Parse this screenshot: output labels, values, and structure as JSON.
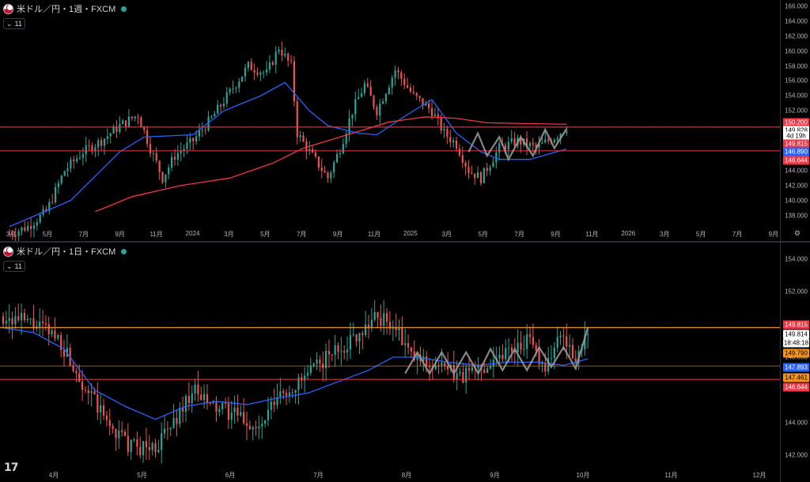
{
  "top_chart": {
    "title": "米ドル／円・1週・FXCM",
    "collapse_label": "11",
    "price_ticks": [
      "166.000",
      "164.000",
      "162.000",
      "160.000",
      "158.000",
      "156.000",
      "154.000",
      "152.000",
      "150.000",
      "148.000",
      "146.000",
      "144.000",
      "142.000",
      "140.000",
      "138.000"
    ],
    "time_labels": [
      "3月",
      "5月",
      "7月",
      "9月",
      "11月",
      "2024",
      "3月",
      "5月",
      "7月",
      "9月",
      "11月",
      "2025",
      "3月",
      "5月",
      "7月",
      "9月",
      "11月",
      "2026",
      "3月",
      "5月",
      "7月",
      "9月"
    ],
    "tags": {
      "ma_red": "150.200",
      "last_price": "149.828",
      "countdown": "4d 19h",
      "line_high": "149.815",
      "ma_blue": "146.890",
      "line_low": "146.644"
    }
  },
  "bottom_chart": {
    "title": "米ドル／円・1日・FXCM",
    "collapse_label": "11",
    "price_ticks": [
      "154.000",
      "152.000",
      "150.000",
      "148.000",
      "146.000",
      "144.000",
      "142.000"
    ],
    "time_labels": [
      "4月",
      "5月",
      "6月",
      "7月",
      "8月",
      "9月",
      "10月",
      "11月",
      "12月"
    ],
    "tags": {
      "line_high": "149.815",
      "last_price": "149.814",
      "countdown": "18:48:18",
      "upper_orange": "149.790",
      "ma_blue": "147.893",
      "lower_orange": "147.461",
      "line_low": "146.644"
    }
  },
  "logo": "17",
  "colors": {
    "up": "#26a69a",
    "down": "#ef5350",
    "ma_blue": "#2962ff",
    "ma_red": "#f23645",
    "orange": "#f7931a",
    "grey_line": "#9e9e9e"
  },
  "chart_data": [
    {
      "type": "candlestick",
      "title": "米ドル／円・1週・FXCM",
      "ylim": [
        137,
        166
      ],
      "x_axis": [
        "3月",
        "5月",
        "7月",
        "9月",
        "11月",
        "2024",
        "3月",
        "5月",
        "7月",
        "9月",
        "11月",
        "2025",
        "3月",
        "5月",
        "7月",
        "9月",
        "11月",
        "2026",
        "3月",
        "5月",
        "7月",
        "9月"
      ],
      "close_path": [
        [
          0,
          135.5
        ],
        [
          6,
          136.5
        ],
        [
          12,
          138.5
        ],
        [
          18,
          144
        ],
        [
          24,
          146.5
        ],
        [
          30,
          148
        ],
        [
          36,
          150
        ],
        [
          42,
          151.5
        ],
        [
          46,
          147
        ],
        [
          50,
          143
        ],
        [
          54,
          146
        ],
        [
          60,
          148
        ],
        [
          66,
          151
        ],
        [
          72,
          154.5
        ],
        [
          78,
          158
        ],
        [
          84,
          157
        ],
        [
          88,
          160.5
        ],
        [
          92,
          158
        ],
        [
          94,
          149
        ],
        [
          98,
          146.5
        ],
        [
          104,
          143
        ],
        [
          108,
          147
        ],
        [
          112,
          152
        ],
        [
          116,
          155.5
        ],
        [
          120,
          152
        ],
        [
          126,
          157.5
        ],
        [
          132,
          154
        ],
        [
          138,
          152
        ],
        [
          142,
          149
        ],
        [
          146,
          147.5
        ],
        [
          150,
          144
        ],
        [
          154,
          143
        ],
        [
          160,
          147
        ],
        [
          166,
          148
        ],
        [
          172,
          147
        ],
        [
          178,
          148.5
        ],
        [
          182,
          149.8
        ]
      ],
      "series": [
        {
          "name": "",
          "color": "#2962ff",
          "points": [
            [
              0,
              136.5
            ],
            [
              20,
              140
            ],
            [
              36,
              146.5
            ],
            [
              44,
              148.5
            ],
            [
              60,
              148.8
            ],
            [
              70,
              152
            ],
            [
              82,
              154
            ],
            [
              90,
              155.8
            ],
            [
              98,
              152
            ],
            [
              104,
              150
            ],
            [
              114,
              149
            ],
            [
              120,
              148.8
            ],
            [
              130,
              151.5
            ],
            [
              138,
              153.5
            ],
            [
              146,
              149
            ],
            [
              154,
              146.5
            ],
            [
              160,
              145.5
            ],
            [
              170,
              145.5
            ],
            [
              176,
              146.2
            ],
            [
              182,
              146.9
            ]
          ]
        },
        {
          "name": "",
          "color": "#f23645",
          "points": [
            [
              28,
              138.5
            ],
            [
              40,
              140.5
            ],
            [
              56,
              142
            ],
            [
              72,
              143
            ],
            [
              86,
              145
            ],
            [
              96,
              147
            ],
            [
              112,
              149
            ],
            [
              124,
              150.5
            ],
            [
              136,
              151.2
            ],
            [
              146,
              151
            ],
            [
              156,
              150.4
            ],
            [
              168,
              150.3
            ],
            [
              182,
              150.2
            ]
          ]
        }
      ],
      "horizontal_lines": [
        {
          "value": 149.815
        },
        {
          "value": 146.644
        }
      ],
      "last_price": 149.828
    },
    {
      "type": "candlestick",
      "title": "米ドル／円・1日・FXCM",
      "ylim": [
        141,
        155
      ],
      "x_axis": [
        "4月",
        "5月",
        "6月",
        "7月",
        "8月",
        "9月",
        "10月",
        "11月",
        "12月"
      ],
      "close_path": [
        [
          0,
          150.5
        ],
        [
          10,
          150
        ],
        [
          18,
          149.2
        ],
        [
          26,
          146.5
        ],
        [
          34,
          144
        ],
        [
          42,
          142.5
        ],
        [
          50,
          142.5
        ],
        [
          56,
          144
        ],
        [
          62,
          146
        ],
        [
          68,
          145
        ],
        [
          76,
          144.5
        ],
        [
          84,
          143.5
        ],
        [
          90,
          145.5
        ],
        [
          98,
          146.5
        ],
        [
          106,
          148
        ],
        [
          114,
          149
        ],
        [
          122,
          150.5
        ],
        [
          128,
          150
        ],
        [
          134,
          148
        ],
        [
          142,
          147.5
        ],
        [
          150,
          146.8
        ],
        [
          158,
          147.5
        ],
        [
          166,
          148.5
        ],
        [
          172,
          149
        ],
        [
          178,
          147.5
        ],
        [
          184,
          149.5
        ],
        [
          188,
          147.5
        ],
        [
          192,
          149.8
        ]
      ],
      "series": [
        {
          "name": "",
          "color": "#2962ff",
          "points": [
            [
              0,
              149.8
            ],
            [
              10,
              149.5
            ],
            [
              20,
              148.5
            ],
            [
              30,
              146
            ],
            [
              40,
              145
            ],
            [
              50,
              144.2
            ],
            [
              60,
              145
            ],
            [
              70,
              145.3
            ],
            [
              80,
              145.1
            ],
            [
              90,
              145.5
            ],
            [
              100,
              145.8
            ],
            [
              110,
              146.5
            ],
            [
              120,
              147.2
            ],
            [
              128,
              148
            ],
            [
              136,
              148
            ],
            [
              146,
              147.7
            ],
            [
              156,
              147.5
            ],
            [
              166,
              147.7
            ],
            [
              176,
              147.7
            ],
            [
              184,
              147.5
            ],
            [
              192,
              147.9
            ]
          ]
        }
      ],
      "horizontal_lines": [
        {
          "value": 149.815
        },
        {
          "value": 146.644
        }
      ],
      "last_price": 149.814
    }
  ]
}
